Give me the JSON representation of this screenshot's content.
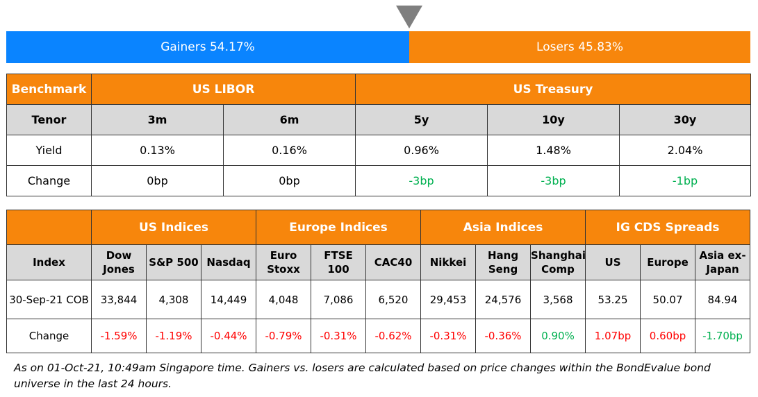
{
  "gainers_losers": {
    "gainers_label": "Gainers 54.17%",
    "losers_label": "Losers 45.83%",
    "gainers_pct": 54.17,
    "losers_pct": 45.83,
    "gainers_color": "#0a84ff",
    "losers_color": "#f7860c"
  },
  "rates": {
    "header": [
      "Benchmark",
      "US LIBOR",
      "US Treasury"
    ],
    "tenor_row": [
      "Tenor",
      "3m",
      "6m",
      "5y",
      "10y",
      "30y"
    ],
    "yield_row": [
      "Yield",
      "0.13%",
      "0.16%",
      "0.96%",
      "1.48%",
      "2.04%"
    ],
    "change_row": [
      "Change",
      "0bp",
      "0bp",
      "-3bp",
      "-3bp",
      "-1bp"
    ]
  },
  "indices": {
    "groups": [
      "",
      "US Indices",
      "Europe Indices",
      "Asia Indices",
      "IG CDS Spreads"
    ],
    "columns": [
      [
        "Index"
      ],
      [
        "Dow",
        "Jones"
      ],
      [
        "S&P 500"
      ],
      [
        "Nasdaq"
      ],
      [
        "Euro",
        "Stoxx"
      ],
      [
        "FTSE 100"
      ],
      [
        "CAC40"
      ],
      [
        "Nikkei"
      ],
      [
        "Hang",
        "Seng"
      ],
      [
        "Shanghai",
        "Comp"
      ],
      [
        "US"
      ],
      [
        "Europe"
      ],
      [
        "Asia ex-",
        "Japan"
      ]
    ],
    "value_row": [
      "30-Sep-21 COB",
      "33,844",
      "4,308",
      "14,449",
      "4,048",
      "7,086",
      "6,520",
      "29,453",
      "24,576",
      "3,568",
      "53.25",
      "50.07",
      "84.94"
    ],
    "change_row": [
      "Change",
      "-1.59%",
      "-1.19%",
      "-0.44%",
      "-0.79%",
      "-0.31%",
      "-0.62%",
      "-0.31%",
      "-0.36%",
      "0.90%",
      "1.07bp",
      "0.60bp",
      "-1.70bp"
    ]
  },
  "colors": {
    "header_orange": "#f7860c",
    "subheader_gray": "#d9d9d9",
    "negative": "#ff0000",
    "positive": "#00b050"
  },
  "footnote": "As on 01-Oct-21, 10:49am Singapore time. Gainers vs. losers are calculated based on price changes within the BondEvalue bond universe in the last 24 hours."
}
